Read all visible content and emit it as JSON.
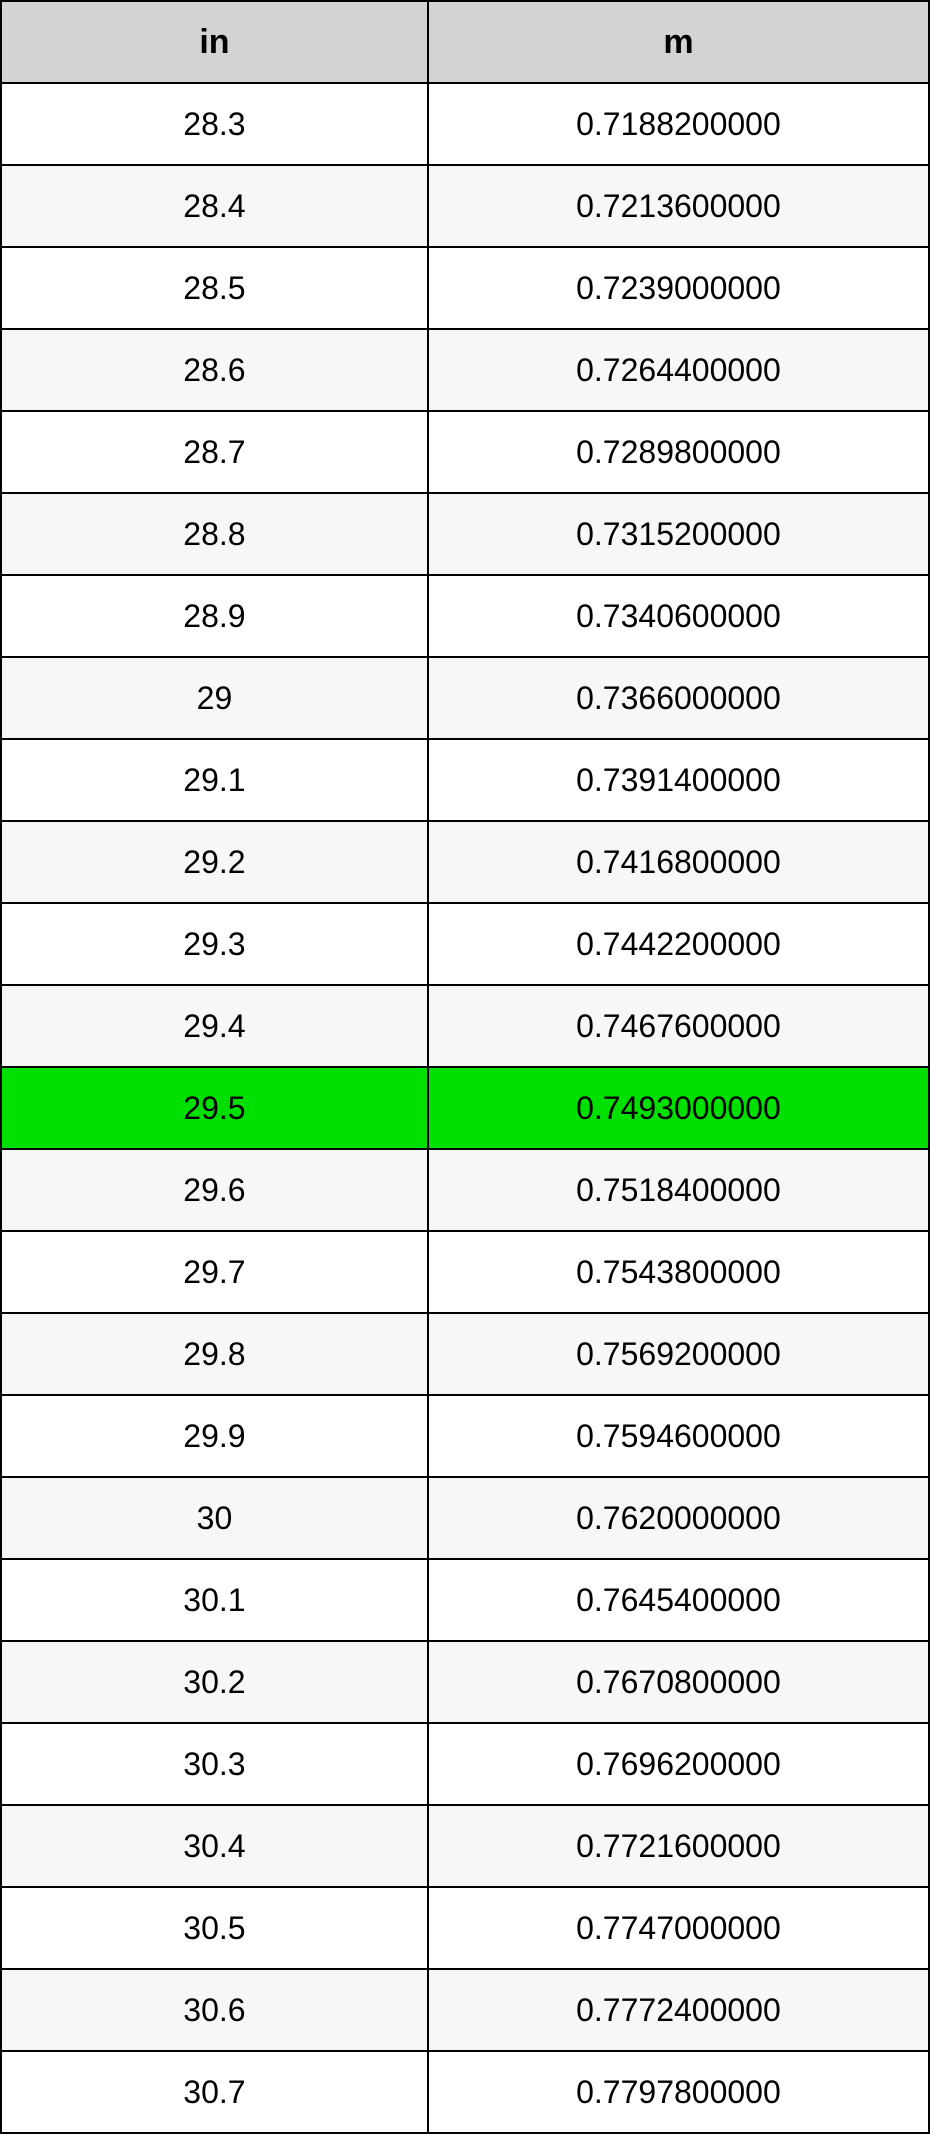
{
  "table": {
    "columns": [
      {
        "label": "in",
        "key": "in"
      },
      {
        "label": "m",
        "key": "m"
      }
    ],
    "header_bg": "#d3d3d3",
    "header_fontsize": 34,
    "cell_fontsize": 32,
    "border_color": "#000000",
    "row_alt_bg_odd": "#f7f7f7",
    "row_alt_bg_even": "#ffffff",
    "highlight_bg": "#00e000",
    "highlight_index": 12,
    "col_widths_pct": [
      46,
      54
    ],
    "rows": [
      {
        "in": "28.3",
        "m": "0.7188200000"
      },
      {
        "in": "28.4",
        "m": "0.7213600000"
      },
      {
        "in": "28.5",
        "m": "0.7239000000"
      },
      {
        "in": "28.6",
        "m": "0.7264400000"
      },
      {
        "in": "28.7",
        "m": "0.7289800000"
      },
      {
        "in": "28.8",
        "m": "0.7315200000"
      },
      {
        "in": "28.9",
        "m": "0.7340600000"
      },
      {
        "in": "29",
        "m": "0.7366000000"
      },
      {
        "in": "29.1",
        "m": "0.7391400000"
      },
      {
        "in": "29.2",
        "m": "0.7416800000"
      },
      {
        "in": "29.3",
        "m": "0.7442200000"
      },
      {
        "in": "29.4",
        "m": "0.7467600000"
      },
      {
        "in": "29.5",
        "m": "0.7493000000"
      },
      {
        "in": "29.6",
        "m": "0.7518400000"
      },
      {
        "in": "29.7",
        "m": "0.7543800000"
      },
      {
        "in": "29.8",
        "m": "0.7569200000"
      },
      {
        "in": "29.9",
        "m": "0.7594600000"
      },
      {
        "in": "30",
        "m": "0.7620000000"
      },
      {
        "in": "30.1",
        "m": "0.7645400000"
      },
      {
        "in": "30.2",
        "m": "0.7670800000"
      },
      {
        "in": "30.3",
        "m": "0.7696200000"
      },
      {
        "in": "30.4",
        "m": "0.7721600000"
      },
      {
        "in": "30.5",
        "m": "0.7747000000"
      },
      {
        "in": "30.6",
        "m": "0.7772400000"
      },
      {
        "in": "30.7",
        "m": "0.7797800000"
      }
    ]
  }
}
